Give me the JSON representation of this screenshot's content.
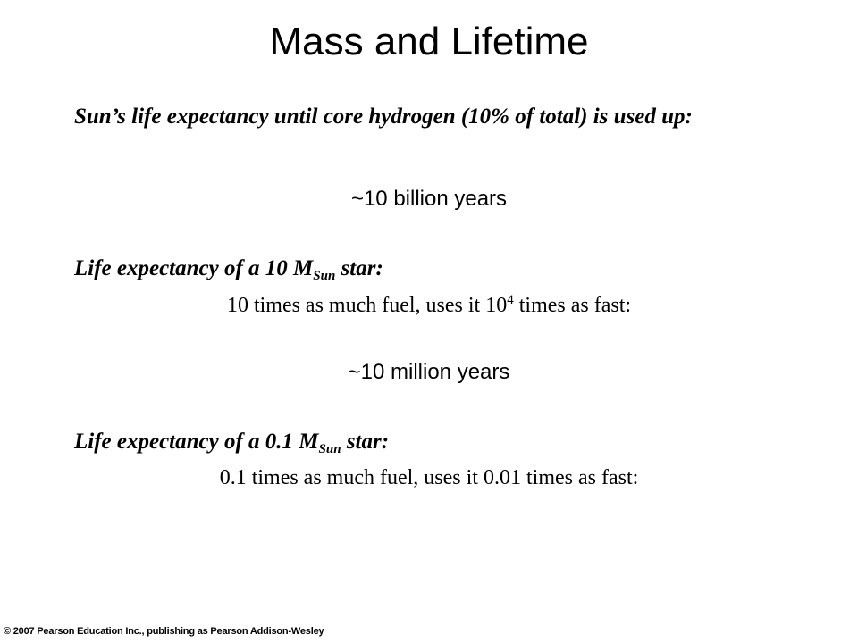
{
  "title": "Mass and Lifetime",
  "sun_section": {
    "heading": "Sun’s life expectancy until core hydrogen (10% of total) is used up:",
    "result": "~10 billion years"
  },
  "massive_star_section": {
    "heading_prefix": "Life expectancy of a 10 M",
    "heading_subscript": "Sun",
    "heading_suffix": " star:",
    "detail_prefix": "10 times as much fuel, uses it 10",
    "detail_superscript": "4",
    "detail_suffix": " times as fast:",
    "result": "~10 million years"
  },
  "low_mass_star_section": {
    "heading_prefix": "Life expectancy of a 0.1 M",
    "heading_subscript": "Sun",
    "heading_suffix": " star:",
    "detail": "0.1 times as much fuel, uses it 0.01 times as fast:"
  },
  "footer": {
    "copyright": "© 2007 Pearson Education Inc., publishing as Pearson Addison-Wesley"
  }
}
